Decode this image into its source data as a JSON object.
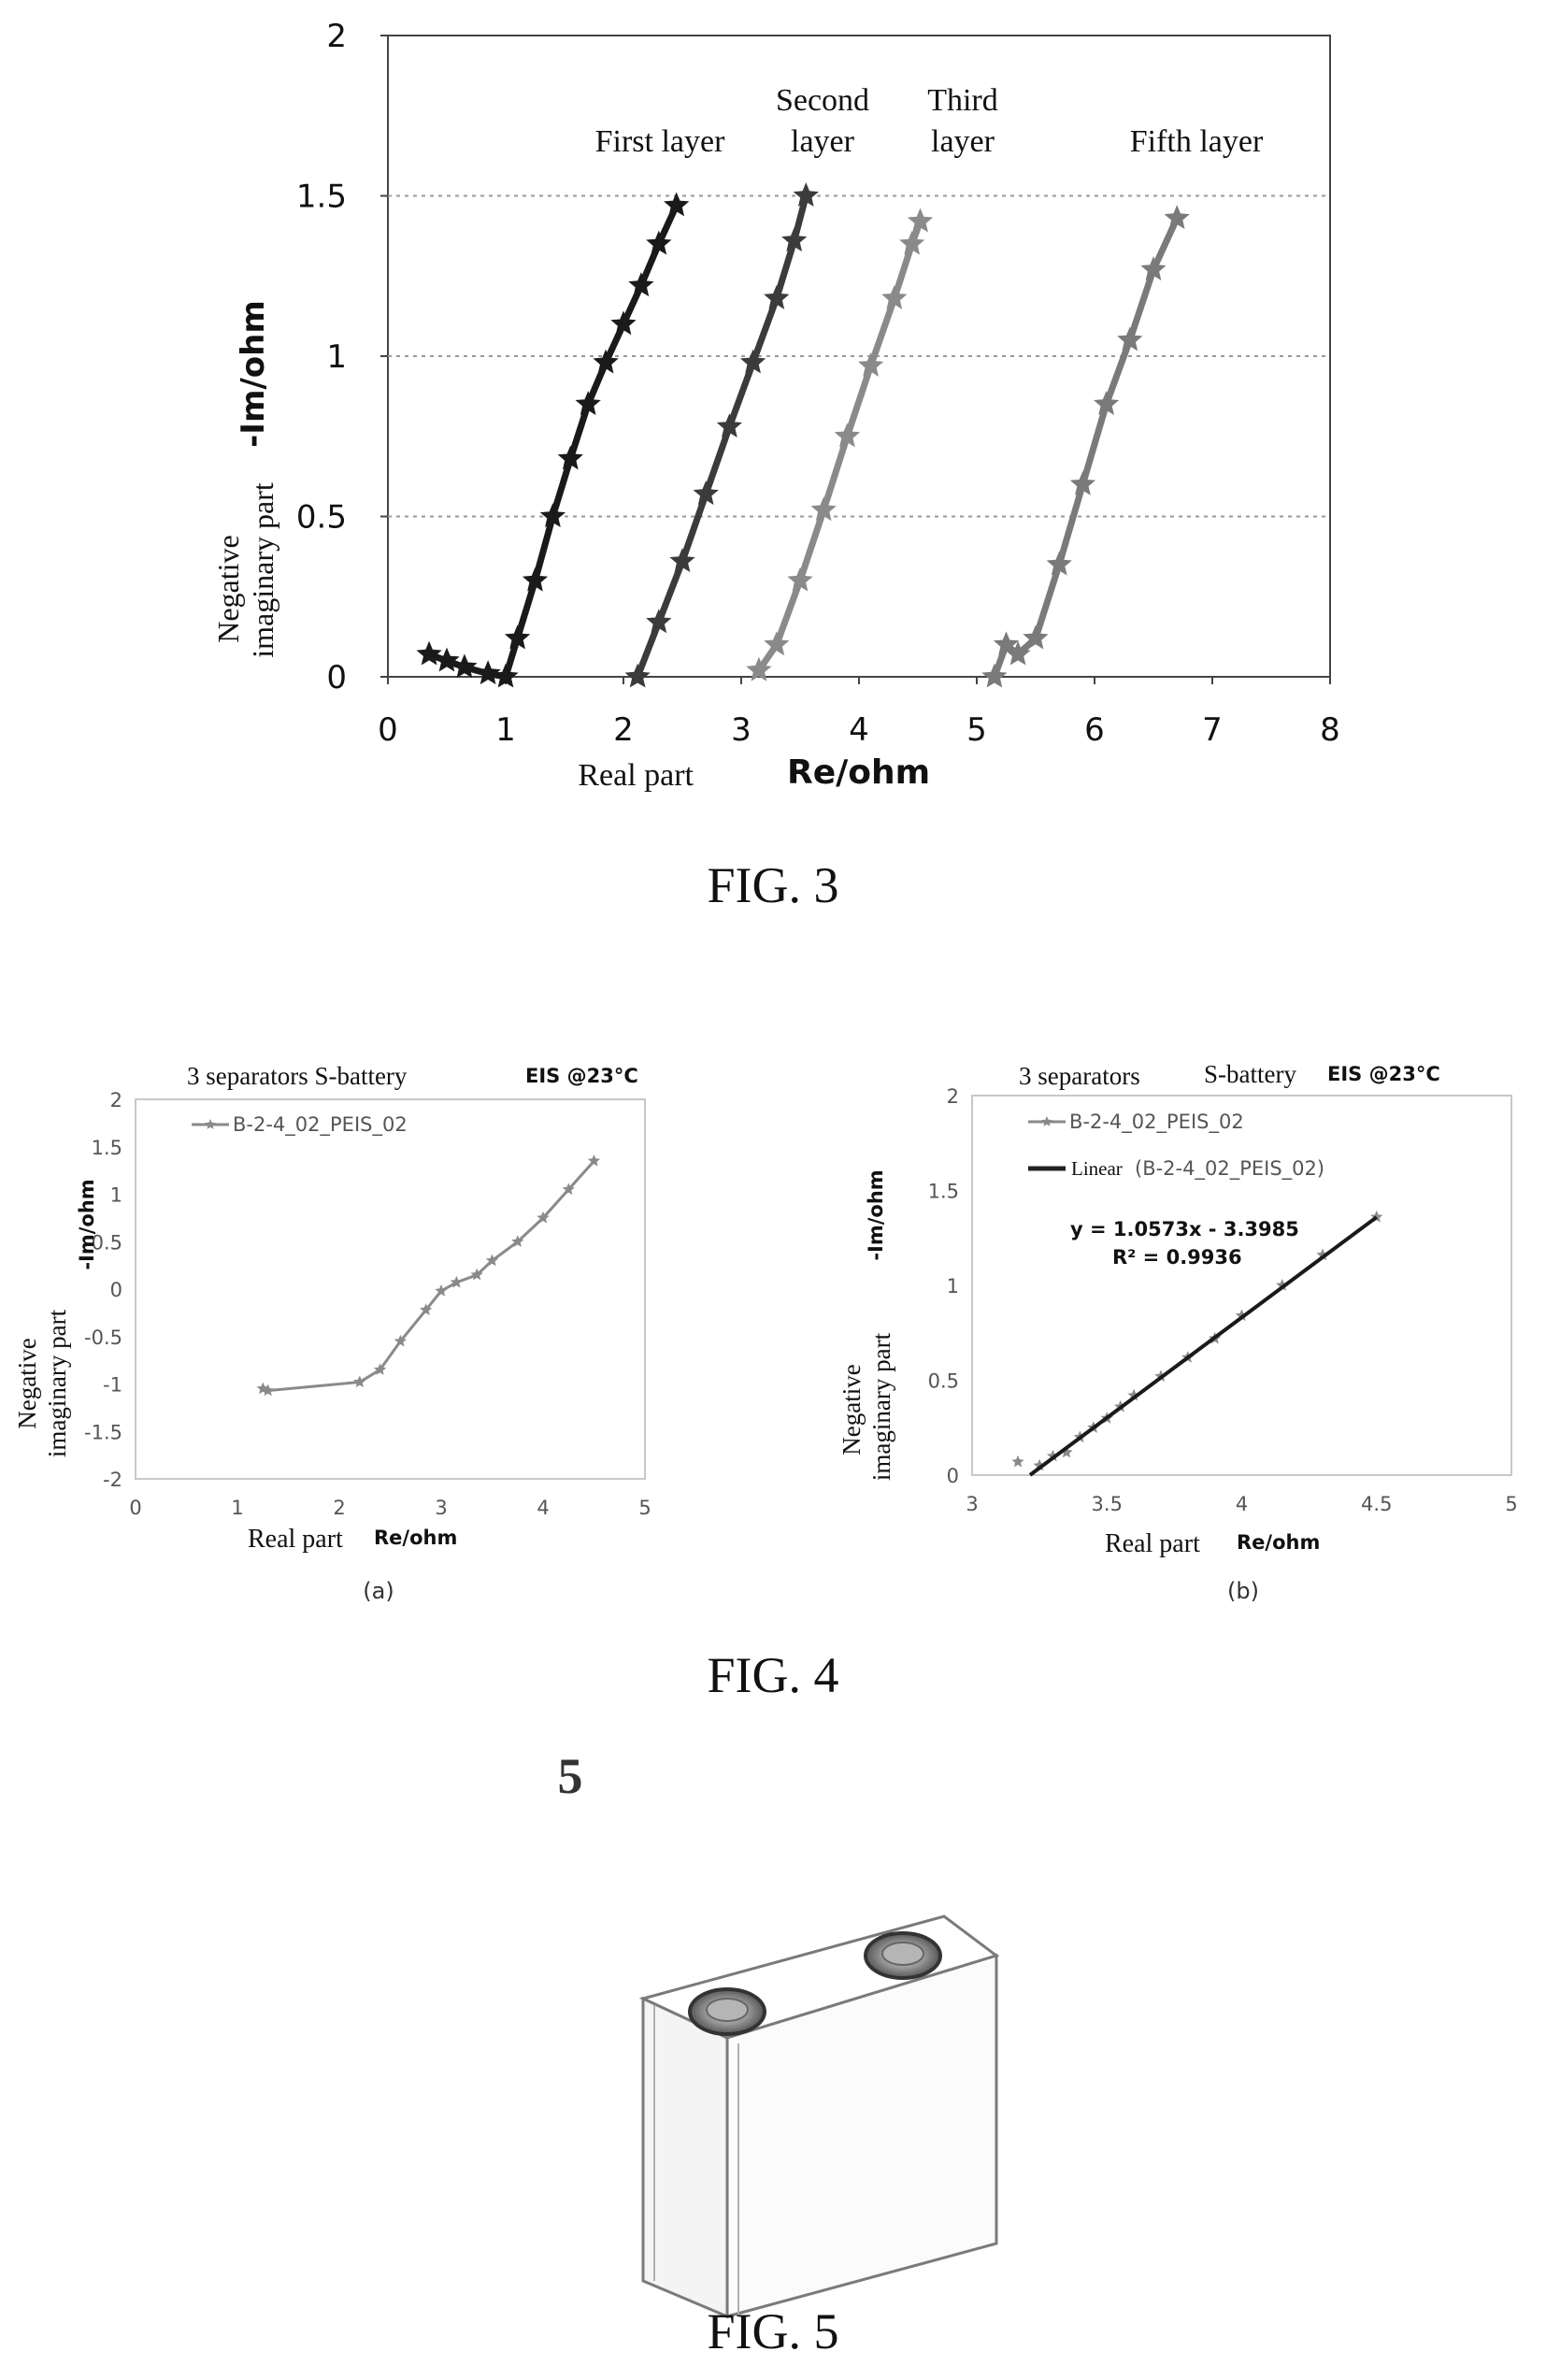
{
  "figures": [
    {
      "caption": "FIG. 3"
    },
    {
      "caption": "FIG. 4"
    },
    {
      "caption": "FIG. 5",
      "ref_numeral": "5",
      "drawing": "prismatic-battery-cell"
    }
  ],
  "chart_data": [
    {
      "id": "fig3",
      "type": "scatter",
      "xlabel_words": "Real part",
      "xlabel_symbol": "Re/ohm",
      "ylabel_words": [
        "Negative",
        "imaginary part"
      ],
      "ylabel_symbol": "-Im/ohm",
      "xlim": [
        0,
        8
      ],
      "ylim": [
        0,
        2
      ],
      "xticks": [
        "0",
        "1",
        "2",
        "3",
        "4",
        "5",
        "6",
        "7",
        "8"
      ],
      "yticks": [
        "0",
        "0.5",
        "1",
        "1.5",
        "2"
      ],
      "gridlines_y": [
        0.5,
        1,
        1.5
      ],
      "series": [
        {
          "name": "First layer",
          "label_lines": [
            "First layer"
          ],
          "color": "#1a1a1a",
          "points": [
            [
              0.35,
              0.07
            ],
            [
              0.5,
              0.05
            ],
            [
              0.65,
              0.03
            ],
            [
              0.85,
              0.01
            ],
            [
              1.0,
              0.0
            ],
            [
              1.1,
              0.12
            ],
            [
              1.25,
              0.3
            ],
            [
              1.4,
              0.5
            ],
            [
              1.55,
              0.68
            ],
            [
              1.7,
              0.85
            ],
            [
              1.85,
              0.98
            ],
            [
              2.0,
              1.1
            ],
            [
              2.15,
              1.22
            ],
            [
              2.3,
              1.35
            ],
            [
              2.45,
              1.47
            ]
          ]
        },
        {
          "name": "Second layer",
          "label_lines": [
            "Second",
            "layer"
          ],
          "color": "#3b3b3b",
          "points": [
            [
              2.12,
              0.0
            ],
            [
              2.3,
              0.17
            ],
            [
              2.5,
              0.36
            ],
            [
              2.7,
              0.57
            ],
            [
              2.9,
              0.78
            ],
            [
              3.1,
              0.98
            ],
            [
              3.3,
              1.18
            ],
            [
              3.45,
              1.36
            ],
            [
              3.55,
              1.5
            ]
          ]
        },
        {
          "name": "Third layer",
          "label_lines": [
            "Third",
            "layer"
          ],
          "color": "#8a8a8a",
          "points": [
            [
              3.15,
              0.02
            ],
            [
              3.3,
              0.1
            ],
            [
              3.5,
              0.3
            ],
            [
              3.7,
              0.52
            ],
            [
              3.9,
              0.75
            ],
            [
              4.1,
              0.97
            ],
            [
              4.3,
              1.18
            ],
            [
              4.45,
              1.35
            ],
            [
              4.52,
              1.42
            ]
          ]
        },
        {
          "name": "Fifth layer",
          "label_lines": [
            "Fifth layer"
          ],
          "color": "#7a7a7a",
          "points": [
            [
              5.15,
              0.0
            ],
            [
              5.25,
              0.1
            ],
            [
              5.35,
              0.07
            ],
            [
              5.5,
              0.12
            ],
            [
              5.7,
              0.35
            ],
            [
              5.9,
              0.6
            ],
            [
              6.1,
              0.85
            ],
            [
              6.3,
              1.05
            ],
            [
              6.5,
              1.27
            ],
            [
              6.7,
              1.43
            ]
          ]
        }
      ]
    },
    {
      "id": "fig4a",
      "type": "line",
      "panel_label": "(a)",
      "title_text": "3 separators  S-battery",
      "title_note": "EIS @23°C",
      "xlabel_words": "Real part",
      "xlabel_symbol": "Re/ohm",
      "ylabel_words": [
        "Negative",
        "imaginary part"
      ],
      "ylabel_symbol": "-Im/ohm",
      "xlim": [
        0,
        5
      ],
      "ylim": [
        -2,
        2
      ],
      "xticks": [
        "0",
        "1",
        "2",
        "3",
        "4",
        "5"
      ],
      "yticks": [
        "-2",
        "-1.5",
        "-1",
        "-0.5",
        "0",
        "0.5",
        "1",
        "1.5",
        "2"
      ],
      "legend": [
        {
          "name": "B-2-4_02_PEIS_02",
          "style": "marker"
        }
      ],
      "series": [
        {
          "name": "B-2-4_02_PEIS_02",
          "color": "#8a8a8a",
          "points": [
            [
              1.25,
              -1.05
            ],
            [
              1.3,
              -1.07
            ],
            [
              2.2,
              -0.98
            ],
            [
              2.4,
              -0.85
            ],
            [
              2.6,
              -0.55
            ],
            [
              2.85,
              -0.22
            ],
            [
              3.0,
              -0.02
            ],
            [
              3.15,
              0.07
            ],
            [
              3.35,
              0.15
            ],
            [
              3.5,
              0.3
            ],
            [
              3.75,
              0.5
            ],
            [
              4.0,
              0.75
            ],
            [
              4.25,
              1.05
            ],
            [
              4.5,
              1.35
            ]
          ]
        }
      ]
    },
    {
      "id": "fig4b",
      "type": "scatter",
      "panel_label": "(b)",
      "title_text_left": "3 separators",
      "title_text_right": "S-battery",
      "title_note": "EIS @23°C",
      "xlabel_words": "Real part",
      "xlabel_symbol": "Re/ohm",
      "ylabel_words": [
        "Negative",
        "imaginary part"
      ],
      "ylabel_symbol": "-Im/ohm",
      "xlim": [
        3,
        5
      ],
      "ylim": [
        0,
        2
      ],
      "xticks": [
        "3",
        "3.5",
        "4",
        "4.5",
        "5"
      ],
      "yticks": [
        "0",
        "0.5",
        "1",
        "1.5",
        "2"
      ],
      "legend": [
        {
          "name": "B-2-4_02_PEIS_02",
          "style": "marker"
        },
        {
          "name_prefix": "Linear",
          "name": "(B-2-4_02_PEIS_02)",
          "style": "line"
        }
      ],
      "fit_equation": "y = 1.0573x - 3.3985",
      "fit_r2": "R² = 0.9936",
      "fit": {
        "slope": 1.0573,
        "intercept": -3.3985,
        "x_from": 3.215,
        "x_to": 4.5
      },
      "series": [
        {
          "name": "B-2-4_02_PEIS_02",
          "color": "#8a8a8a",
          "points": [
            [
              3.17,
              0.07
            ],
            [
              3.25,
              0.05
            ],
            [
              3.3,
              0.1
            ],
            [
              3.35,
              0.12
            ],
            [
              3.4,
              0.2
            ],
            [
              3.45,
              0.25
            ],
            [
              3.5,
              0.3
            ],
            [
              3.55,
              0.36
            ],
            [
              3.6,
              0.42
            ],
            [
              3.7,
              0.52
            ],
            [
              3.8,
              0.62
            ],
            [
              3.9,
              0.72
            ],
            [
              4.0,
              0.84
            ],
            [
              4.15,
              1.0
            ],
            [
              4.3,
              1.16
            ],
            [
              4.5,
              1.36
            ]
          ]
        }
      ]
    }
  ]
}
